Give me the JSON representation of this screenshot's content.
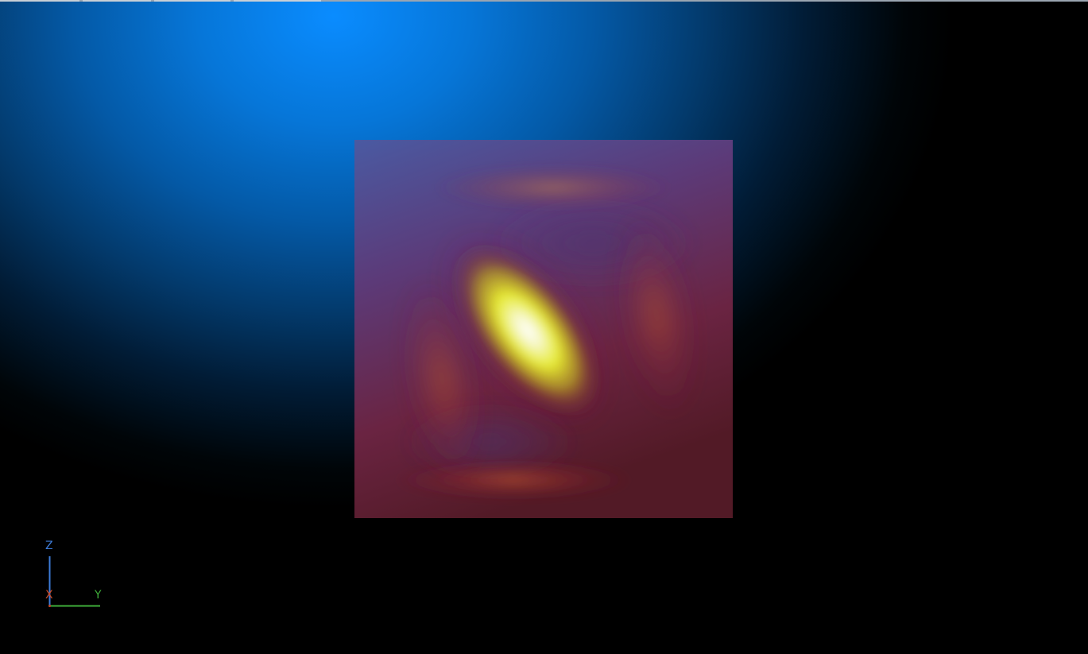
{
  "viewer": {
    "background_top": "#0a8cff",
    "background_bottom": "#000000"
  },
  "slice": {
    "colormap": [
      "#3b4f9a",
      "#5a2a6a",
      "#7a2030",
      "#e0e020",
      "#ffffff"
    ]
  },
  "orientation_axes": {
    "z_label": "Z",
    "x_label": "X",
    "y_label": "Y",
    "z_color": "#3d7bd8",
    "x_color": "#c84a2a",
    "y_color": "#3fae3a"
  }
}
